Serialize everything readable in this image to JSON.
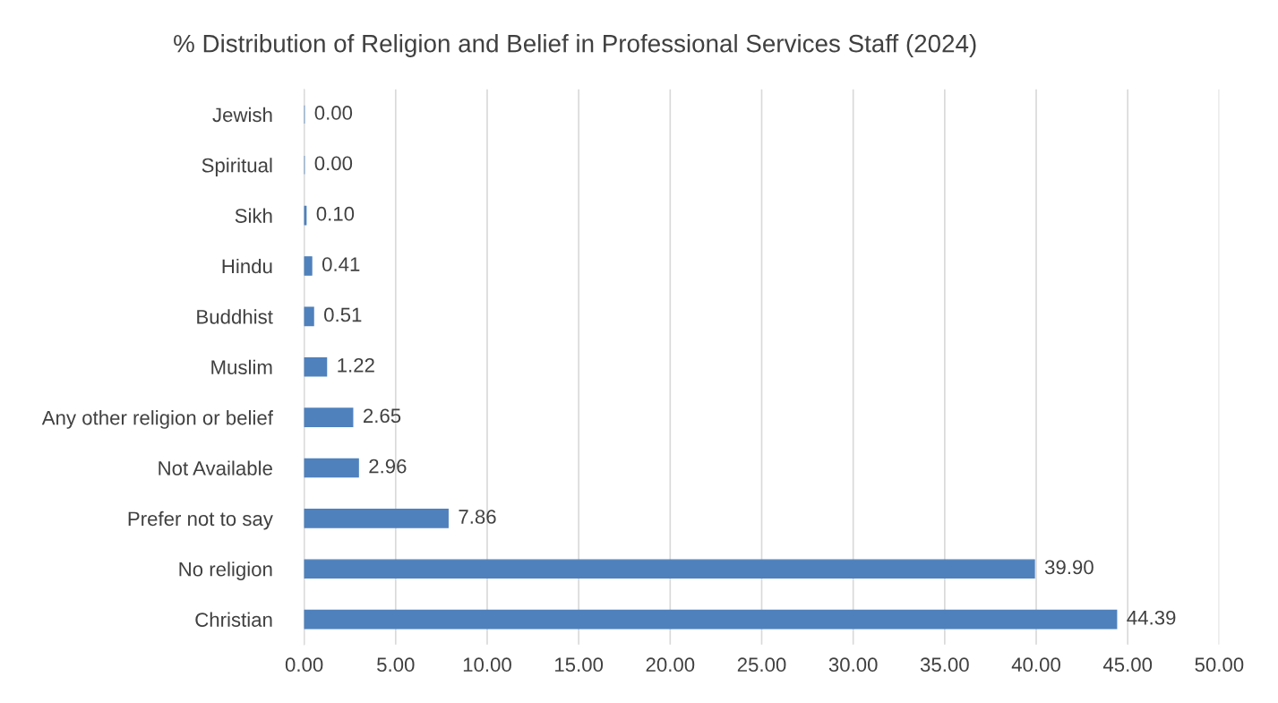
{
  "chart_data": {
    "type": "bar",
    "orientation": "horizontal",
    "title": "% Distribution of Religion and Belief in Professional Services Staff (2024)",
    "categories": [
      "Jewish",
      "Spiritual",
      "Sikh",
      "Hindu",
      "Buddhist",
      "Muslim",
      "Any other religion or belief",
      "Not Available",
      "Prefer not to say",
      "No religion",
      "Christian"
    ],
    "values": [
      0.0,
      0.0,
      0.1,
      0.41,
      0.51,
      1.22,
      2.65,
      2.96,
      7.86,
      39.9,
      44.39
    ],
    "value_labels": [
      "0.00",
      "0.00",
      "0.10",
      "0.41",
      "0.51",
      "1.22",
      "2.65",
      "2.96",
      "7.86",
      "39.90",
      "44.39"
    ],
    "color": "#4f81bd",
    "xlim": [
      0,
      50
    ],
    "xticks": [
      {
        "value": 0,
        "label": "0.00"
      },
      {
        "value": 5,
        "label": "5.00"
      },
      {
        "value": 10,
        "label": "10.00"
      },
      {
        "value": 15,
        "label": "15.00"
      },
      {
        "value": 20,
        "label": "20.00"
      },
      {
        "value": 25,
        "label": "25.00"
      },
      {
        "value": 30,
        "label": "30.00"
      },
      {
        "value": 35,
        "label": "35.00"
      },
      {
        "value": 40,
        "label": "40.00"
      },
      {
        "value": 45,
        "label": "45.00"
      },
      {
        "value": 50,
        "label": "50.00"
      }
    ],
    "grid": "x",
    "legend": false
  }
}
